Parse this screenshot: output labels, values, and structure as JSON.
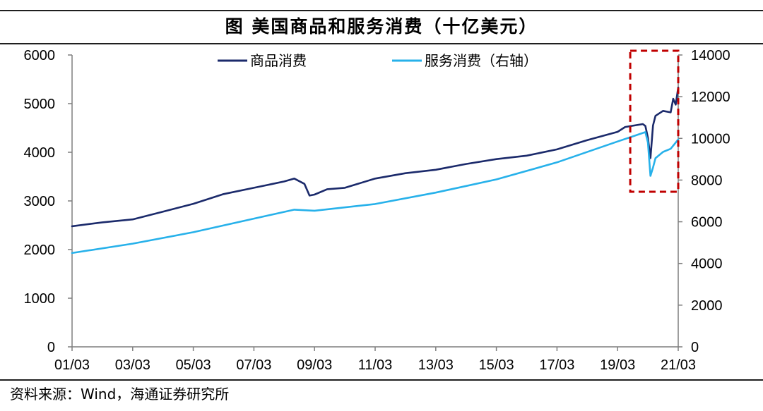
{
  "figure": {
    "title": "图  美国商品和服务消费（十亿美元）",
    "source": "资料来源：Wind，海通证券研究所"
  },
  "chart_data": {
    "type": "line",
    "x_ticks": [
      "01/03",
      "03/03",
      "05/03",
      "07/03",
      "09/03",
      "11/03",
      "13/03",
      "15/03",
      "17/03",
      "19/03",
      "21/03"
    ],
    "x_range": [
      "2001-03",
      "2021-03"
    ],
    "y_left": {
      "range": [
        0,
        6000
      ],
      "ticks": [
        0,
        1000,
        2000,
        3000,
        4000,
        5000,
        6000
      ]
    },
    "y_right": {
      "range": [
        0,
        14000
      ],
      "ticks": [
        0,
        2000,
        4000,
        6000,
        8000,
        10000,
        12000,
        14000
      ]
    },
    "legend": {
      "position": "top-center"
    },
    "grid": false,
    "series": [
      {
        "name": "商品消费",
        "axis": "left",
        "color": "#1b2a6b",
        "points": [
          [
            "2001-03",
            2480
          ],
          [
            "2002-03",
            2560
          ],
          [
            "2003-03",
            2620
          ],
          [
            "2004-03",
            2780
          ],
          [
            "2005-03",
            2940
          ],
          [
            "2006-03",
            3140
          ],
          [
            "2007-03",
            3270
          ],
          [
            "2008-03",
            3400
          ],
          [
            "2008-07",
            3460
          ],
          [
            "2008-11",
            3350
          ],
          [
            "2009-01",
            3110
          ],
          [
            "2009-03",
            3130
          ],
          [
            "2009-08",
            3240
          ],
          [
            "2010-03",
            3270
          ],
          [
            "2011-03",
            3460
          ],
          [
            "2012-03",
            3570
          ],
          [
            "2013-03",
            3640
          ],
          [
            "2014-03",
            3760
          ],
          [
            "2015-03",
            3860
          ],
          [
            "2016-03",
            3930
          ],
          [
            "2017-03",
            4060
          ],
          [
            "2018-03",
            4250
          ],
          [
            "2019-03",
            4420
          ],
          [
            "2019-06",
            4520
          ],
          [
            "2020-01",
            4580
          ],
          [
            "2020-02",
            4540
          ],
          [
            "2020-03",
            4300
          ],
          [
            "2020-04",
            3880
          ],
          [
            "2020-05",
            4550
          ],
          [
            "2020-06",
            4750
          ],
          [
            "2020-09",
            4850
          ],
          [
            "2020-12",
            4820
          ],
          [
            "2021-01",
            5100
          ],
          [
            "2021-02",
            4980
          ],
          [
            "2021-03",
            5330
          ]
        ]
      },
      {
        "name": "服务消费（右轴）",
        "axis": "right",
        "color": "#27b1ea",
        "points": [
          [
            "2001-03",
            4500
          ],
          [
            "2003-03",
            4950
          ],
          [
            "2005-03",
            5500
          ],
          [
            "2007-03",
            6150
          ],
          [
            "2008-07",
            6580
          ],
          [
            "2009-03",
            6530
          ],
          [
            "2011-03",
            6850
          ],
          [
            "2013-03",
            7400
          ],
          [
            "2015-03",
            8030
          ],
          [
            "2017-03",
            8850
          ],
          [
            "2019-03",
            9850
          ],
          [
            "2020-02",
            10300
          ],
          [
            "2020-03",
            9800
          ],
          [
            "2020-04",
            8200
          ],
          [
            "2020-05",
            8600
          ],
          [
            "2020-06",
            9050
          ],
          [
            "2020-09",
            9350
          ],
          [
            "2020-12",
            9500
          ],
          [
            "2021-03",
            9950
          ]
        ]
      }
    ],
    "annotations": [
      {
        "type": "dashed-box",
        "x_range": [
          "2019-08",
          "2021-03"
        ],
        "color": "#c00000"
      }
    ]
  }
}
